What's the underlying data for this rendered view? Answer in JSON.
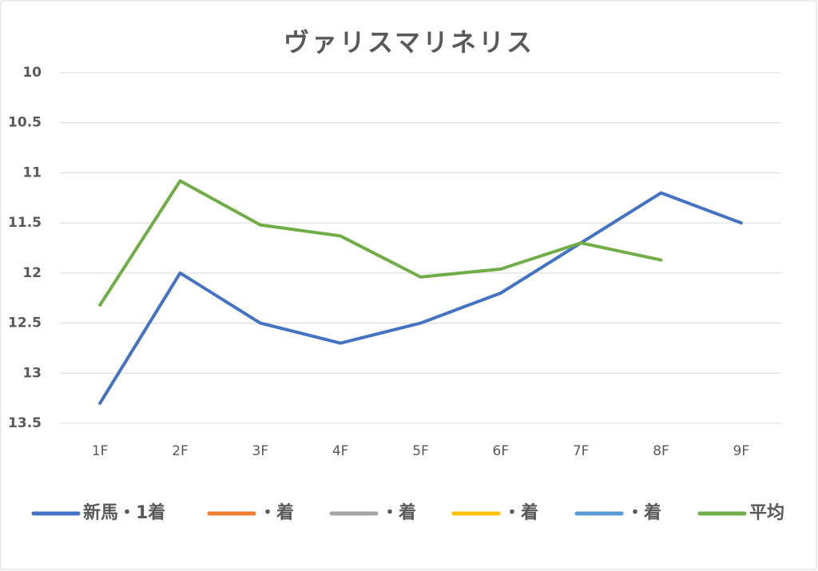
{
  "chart_data": {
    "type": "line",
    "title": "ヴァリスマリネリス",
    "categories": [
      "1F",
      "2F",
      "3F",
      "4F",
      "5F",
      "6F",
      "7F",
      "8F",
      "9F"
    ],
    "series": [
      {
        "name": "新馬・1着",
        "color": "#4472c4",
        "values": [
          13.3,
          12.0,
          12.5,
          12.7,
          12.5,
          12.2,
          11.7,
          11.2,
          11.5
        ]
      },
      {
        "name": "・着",
        "color": "#ed7d31",
        "values": [
          null,
          null,
          null,
          null,
          null,
          null,
          null,
          null,
          null
        ]
      },
      {
        "name": "・着",
        "color": "#a5a5a5",
        "values": [
          null,
          null,
          null,
          null,
          null,
          null,
          null,
          null,
          null
        ]
      },
      {
        "name": "・着",
        "color": "#ffc000",
        "values": [
          null,
          null,
          null,
          null,
          null,
          null,
          null,
          null,
          null
        ]
      },
      {
        "name": "・着",
        "color": "#5b9bd5",
        "values": [
          null,
          null,
          null,
          null,
          null,
          null,
          null,
          null,
          null
        ]
      },
      {
        "name": "平均",
        "color": "#70ad47",
        "values": [
          12.32,
          11.08,
          11.52,
          11.63,
          12.04,
          11.96,
          11.7,
          11.87,
          null
        ]
      }
    ],
    "ylim": [
      13.5,
      10
    ],
    "yticks": [
      10,
      10.5,
      11,
      11.5,
      12,
      12.5,
      13,
      13.5
    ],
    "grid": true,
    "legend": "bottom"
  }
}
